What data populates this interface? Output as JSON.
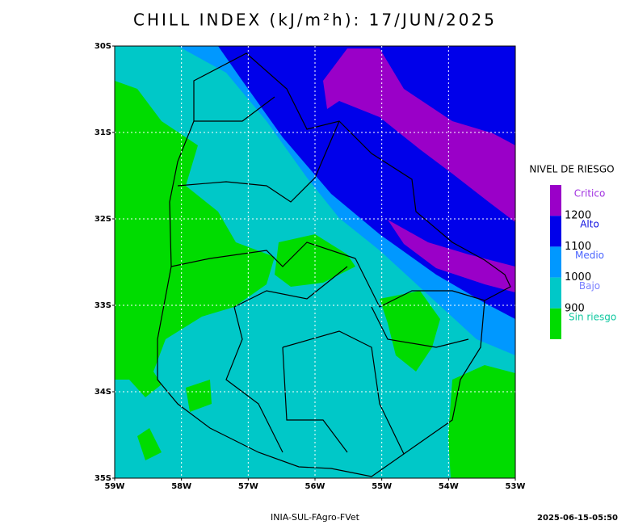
{
  "title": "CHILL INDEX (kJ/m²h): 17/JUN/2025",
  "lat_labels": [
    "30S",
    "31S",
    "32S",
    "33S",
    "34S",
    "35S"
  ],
  "lon_labels": [
    "59W",
    "58W",
    "57W",
    "56W",
    "55W",
    "54W",
    "53W"
  ],
  "legend": {
    "title": "NIVEL DE RIESGO",
    "classes": [
      {
        "label": "Critico",
        "color": "#9a00c8",
        "text_color": "#a030e0"
      },
      {
        "label": "Alto",
        "color": "#0000ea",
        "text_color": "#1010e0"
      },
      {
        "label": "Medio",
        "color": "#0098ff",
        "text_color": "#4a64ff"
      },
      {
        "label": "Bajo",
        "color": "#00c8c8",
        "text_color": "#7a80ff"
      },
      {
        "label": "Sin riesgo",
        "color": "#00dc00",
        "text_color": "#10c8a0"
      }
    ],
    "thresholds": [
      1200,
      1100,
      1000,
      900
    ]
  },
  "footer": {
    "source": "INIA-SUL-FAgro-FVet",
    "timestamp": "2025-06-15-05:50"
  }
}
